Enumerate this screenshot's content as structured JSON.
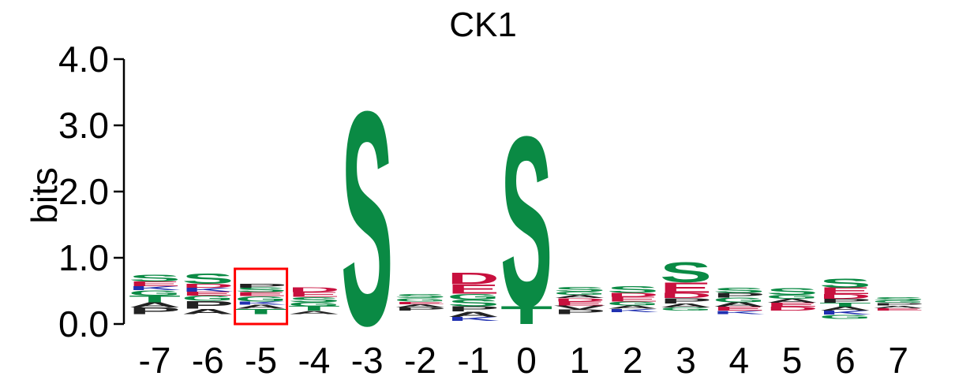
{
  "chart_data": {
    "type": "sequence-logo",
    "title": "CK1",
    "ylabel": "bits",
    "ylim": [
      0,
      4.0
    ],
    "y_ticks": [
      "0.0",
      "1.0",
      "2.0",
      "3.0",
      "4.0"
    ],
    "y_tick_values": [
      0,
      1,
      2,
      3,
      4
    ],
    "positions": [
      "-7",
      "-6",
      "-5",
      "-4",
      "-3",
      "-2",
      "-1",
      "0",
      "1",
      "2",
      "3",
      "4",
      "5",
      "6",
      "7"
    ],
    "highlighted_position": "-5",
    "highlight_color": "#ff0000",
    "colors": {
      "S": "#0a8a44",
      "T": "#0a8a44",
      "G": "#0a8a44",
      "C": "#0a8a44",
      "Y": "#0a8a44",
      "N": "#0a8a44",
      "Q": "#0a8a44",
      "D": "#c8103e",
      "E": "#c8103e",
      "K": "#2030b0",
      "R": "#2030b0",
      "H": "#2030b0",
      "P": "#222222",
      "A": "#222222",
      "V": "#222222",
      "L": "#222222",
      "I": "#222222",
      "M": "#222222",
      "F": "#222222",
      "W": "#222222"
    },
    "stacks": [
      {
        "position": "-7",
        "base": 0.15,
        "letters": [
          {
            "letter": "P",
            "h": 0.1
          },
          {
            "letter": "A",
            "h": 0.08
          },
          {
            "letter": "T",
            "h": 0.1
          },
          {
            "letter": "G",
            "h": 0.08
          },
          {
            "letter": "K",
            "h": 0.06
          },
          {
            "letter": "E",
            "h": 0.07
          },
          {
            "letter": "S",
            "h": 0.1
          }
        ]
      },
      {
        "position": "-6",
        "base": 0.15,
        "letters": [
          {
            "letter": "A",
            "h": 0.08
          },
          {
            "letter": "P",
            "h": 0.12
          },
          {
            "letter": "G",
            "h": 0.08
          },
          {
            "letter": "E",
            "h": 0.06
          },
          {
            "letter": "K",
            "h": 0.06
          },
          {
            "letter": "D",
            "h": 0.06
          },
          {
            "letter": "S",
            "h": 0.16
          }
        ]
      },
      {
        "position": "-5",
        "base": 0.15,
        "letters": [
          {
            "letter": "T",
            "h": 0.08
          },
          {
            "letter": "A",
            "h": 0.06
          },
          {
            "letter": "K",
            "h": 0.05
          },
          {
            "letter": "G",
            "h": 0.08
          },
          {
            "letter": "E",
            "h": 0.06
          },
          {
            "letter": "S",
            "h": 0.07
          },
          {
            "letter": "P",
            "h": 0.06
          }
        ]
      },
      {
        "position": "-4",
        "base": 0.15,
        "letters": [
          {
            "letter": "A",
            "h": 0.05
          },
          {
            "letter": "T",
            "h": 0.07
          },
          {
            "letter": "G",
            "h": 0.06
          },
          {
            "letter": "S",
            "h": 0.08
          },
          {
            "letter": "E",
            "h": 0.07
          },
          {
            "letter": "D",
            "h": 0.07
          }
        ]
      },
      {
        "position": "-3",
        "base": 0.0,
        "letters": [
          {
            "letter": "S",
            "h": 3.32
          }
        ]
      },
      {
        "position": "-2",
        "base": 0.2,
        "letters": [
          {
            "letter": "P",
            "h": 0.05
          },
          {
            "letter": "A",
            "h": 0.05
          },
          {
            "letter": "E",
            "h": 0.04
          },
          {
            "letter": "G",
            "h": 0.05
          },
          {
            "letter": "S",
            "h": 0.06
          }
        ]
      },
      {
        "position": "-1",
        "base": 0.05,
        "letters": [
          {
            "letter": "K",
            "h": 0.06
          },
          {
            "letter": "A",
            "h": 0.08
          },
          {
            "letter": "P",
            "h": 0.08
          },
          {
            "letter": "S",
            "h": 0.1
          },
          {
            "letter": "G",
            "h": 0.09
          },
          {
            "letter": "E",
            "h": 0.14
          },
          {
            "letter": "D",
            "h": 0.18
          }
        ]
      },
      {
        "position": "0",
        "base": 0.0,
        "letters": [
          {
            "letter": "T",
            "h": 0.28
          },
          {
            "letter": "S",
            "h": 2.64
          }
        ]
      },
      {
        "position": "1",
        "base": 0.15,
        "letters": [
          {
            "letter": "P",
            "h": 0.07
          },
          {
            "letter": "V",
            "h": 0.06
          },
          {
            "letter": "E",
            "h": 0.06
          },
          {
            "letter": "D",
            "h": 0.05
          },
          {
            "letter": "A",
            "h": 0.05
          },
          {
            "letter": "G",
            "h": 0.05
          },
          {
            "letter": "S",
            "h": 0.07
          }
        ]
      },
      {
        "position": "2",
        "base": 0.18,
        "letters": [
          {
            "letter": "K",
            "h": 0.05
          },
          {
            "letter": "A",
            "h": 0.05
          },
          {
            "letter": "G",
            "h": 0.06
          },
          {
            "letter": "E",
            "h": 0.07
          },
          {
            "letter": "D",
            "h": 0.06
          },
          {
            "letter": "S",
            "h": 0.1
          }
        ]
      },
      {
        "position": "3",
        "base": 0.2,
        "letters": [
          {
            "letter": "G",
            "h": 0.05
          },
          {
            "letter": "A",
            "h": 0.06
          },
          {
            "letter": "P",
            "h": 0.08
          },
          {
            "letter": "D",
            "h": 0.08
          },
          {
            "letter": "E",
            "h": 0.16
          },
          {
            "letter": "S",
            "h": 0.31
          }
        ]
      },
      {
        "position": "4",
        "base": 0.15,
        "letters": [
          {
            "letter": "K",
            "h": 0.05
          },
          {
            "letter": "E",
            "h": 0.06
          },
          {
            "letter": "A",
            "h": 0.07
          },
          {
            "letter": "G",
            "h": 0.07
          },
          {
            "letter": "P",
            "h": 0.07
          },
          {
            "letter": "S",
            "h": 0.08
          }
        ]
      },
      {
        "position": "5",
        "base": 0.2,
        "letters": [
          {
            "letter": "D",
            "h": 0.06
          },
          {
            "letter": "E",
            "h": 0.06
          },
          {
            "letter": "A",
            "h": 0.06
          },
          {
            "letter": "G",
            "h": 0.06
          },
          {
            "letter": "S",
            "h": 0.1
          }
        ]
      },
      {
        "position": "6",
        "base": 0.08,
        "letters": [
          {
            "letter": "G",
            "h": 0.06
          },
          {
            "letter": "K",
            "h": 0.06
          },
          {
            "letter": "A",
            "h": 0.06
          },
          {
            "letter": "T",
            "h": 0.06
          },
          {
            "letter": "P",
            "h": 0.06
          },
          {
            "letter": "D",
            "h": 0.07
          },
          {
            "letter": "E",
            "h": 0.1
          },
          {
            "letter": "S",
            "h": 0.14
          }
        ]
      },
      {
        "position": "7",
        "base": 0.2,
        "letters": [
          {
            "letter": "E",
            "h": 0.04
          },
          {
            "letter": "A",
            "h": 0.04
          },
          {
            "letter": "P",
            "h": 0.04
          },
          {
            "letter": "G",
            "h": 0.04
          },
          {
            "letter": "S",
            "h": 0.05
          }
        ]
      }
    ]
  }
}
